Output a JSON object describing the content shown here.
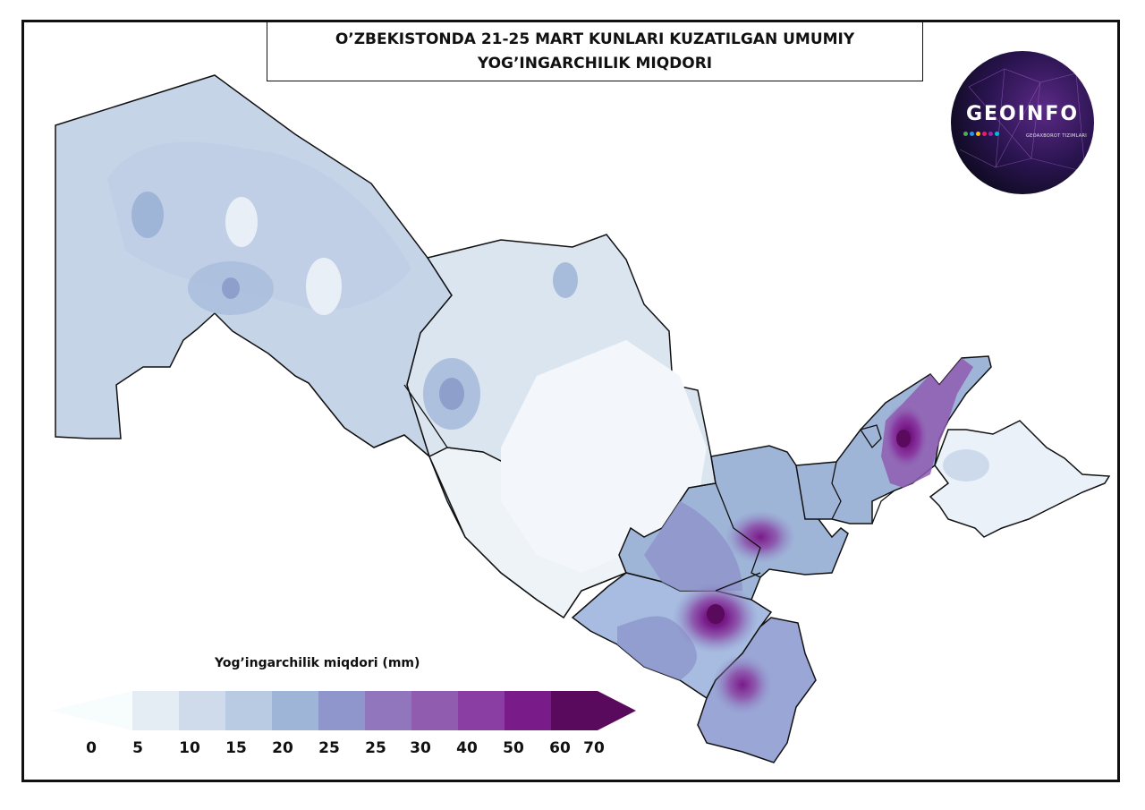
{
  "title": {
    "line1": "O’ZBEKISTONDA 21-25 MART KUNLARI KUZATILGAN UMUMIY",
    "line2": "YOG’INGARCHILIK MIQDORI"
  },
  "logo": {
    "text": "GEOINFO",
    "subtitle": "GEOAXBOROT TIZIMLARI"
  },
  "legend": {
    "title": "Yog’ingarchilik miqdori (mm)",
    "ticks": [
      "0",
      "5",
      "10",
      "15",
      "20",
      "25",
      "25",
      "30",
      "40",
      "50",
      "60",
      "70"
    ],
    "colors": [
      "#f7fcfd",
      "#e4ecf4",
      "#cfdbeb",
      "#b8cbe3",
      "#9fb5d8",
      "#8f96cc",
      "#9176bd",
      "#8f5cb0",
      "#8a3ea3",
      "#7a1b8a",
      "#5a0a5c"
    ]
  },
  "colors": {
    "border": "#111111",
    "background": "#ffffff"
  }
}
